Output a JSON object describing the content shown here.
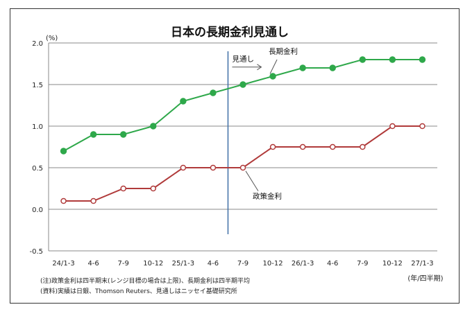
{
  "chart_data": {
    "type": "line",
    "title": "日本の長期金利見通し",
    "ylabel": "(%)",
    "xunit_label": "(年/四半期)",
    "ylim": [
      -0.5,
      2.0
    ],
    "yticks": [
      "2.0",
      "1.5",
      "1.0",
      "0.5",
      "0.0",
      "-0.5"
    ],
    "ytick_values": [
      2.0,
      1.5,
      1.0,
      0.5,
      0.0,
      -0.5
    ],
    "categories": [
      "24/1-3",
      "4-6",
      "7-9",
      "10-12",
      "25/1-3",
      "4-6",
      "7-9",
      "10-12",
      "26/1-3",
      "4-6",
      "7-9",
      "10-12",
      "27/1-3"
    ],
    "forecast_start_label": "見通し",
    "grid": true,
    "series": [
      {
        "name": "長期金利",
        "color": "#2ea84a",
        "values": [
          0.7,
          0.9,
          0.9,
          1.0,
          1.3,
          1.4,
          1.5,
          1.6,
          1.7,
          1.7,
          1.8,
          1.8,
          1.8
        ]
      },
      {
        "name": "政策金利",
        "color": "#b03a3a",
        "values": [
          0.1,
          0.1,
          0.25,
          0.25,
          0.5,
          0.5,
          0.5,
          0.75,
          0.75,
          0.75,
          0.75,
          1.0,
          1.0
        ]
      }
    ],
    "notes": [
      "(注)政策金利は四半期末(レンジ目標の場合は上限)、長期金利は四半期平均",
      "(資料)実績は日銀、Thomson Reuters、見通しはニッセイ基礎研究所"
    ]
  }
}
